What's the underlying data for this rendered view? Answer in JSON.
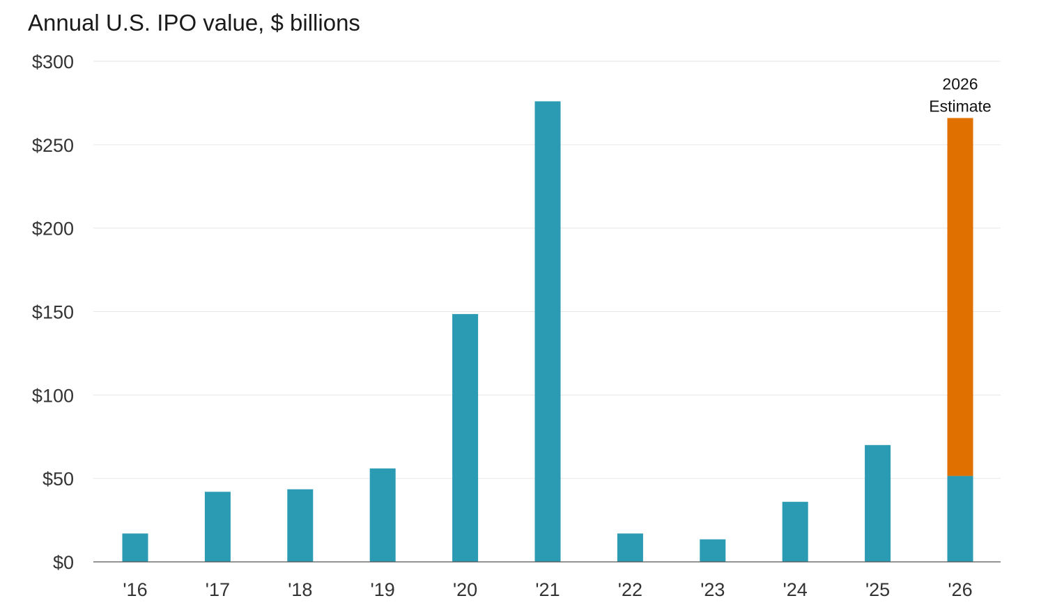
{
  "chart_data": {
    "type": "bar",
    "title": "Annual U.S. IPO value, $ billions",
    "xlabel": "",
    "ylabel": "",
    "categories": [
      "'16",
      "'17",
      "'18",
      "'19",
      "'20",
      "'21",
      "'22",
      "'23",
      "'24",
      "'25",
      "'26"
    ],
    "series": [
      {
        "values": [
          17,
          42,
          43.5,
          56,
          148.5,
          276,
          17,
          13.5,
          36,
          70,
          51.5
        ],
        "color": "#2b9ab3"
      },
      {
        "values": [
          0,
          0,
          0,
          0,
          0,
          0,
          0,
          0,
          0,
          0,
          214.5
        ],
        "color": "#e07000"
      }
    ],
    "stacked": true,
    "ylim": [
      0,
      300
    ],
    "yticks": [
      0,
      50,
      100,
      150,
      200,
      250,
      300
    ],
    "ytick_labels": [
      "$0",
      "$50",
      "$100",
      "$150",
      "$200",
      "$250",
      "$300"
    ],
    "grid": true,
    "legend": "none",
    "annotation": {
      "category": "'26",
      "lines": [
        "2026",
        "Estimate"
      ]
    }
  }
}
